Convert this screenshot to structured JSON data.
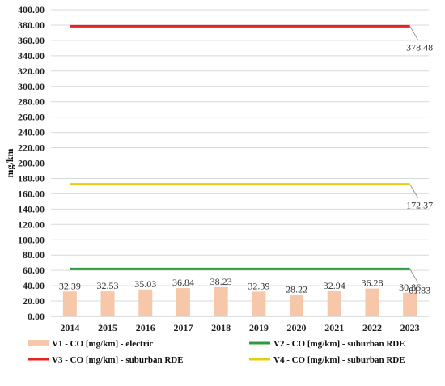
{
  "chart_data": {
    "type": "bar",
    "title": "",
    "xlabel": "",
    "ylabel": "mg/km",
    "ylim": [
      0,
      400
    ],
    "y_tick_step": 20,
    "y_tick_decimals": 2,
    "grid": true,
    "legend_position": "bottom",
    "categories": [
      "2014",
      "2015",
      "2016",
      "2017",
      "2018",
      "2019",
      "2020",
      "2021",
      "2022",
      "2023"
    ],
    "series": [
      {
        "name": "V1 - CO [mg/km] - electric",
        "type": "bar",
        "color": "#f6c7a8",
        "values": [
          32.39,
          32.53,
          35.03,
          36.84,
          38.23,
          32.39,
          28.22,
          32.94,
          36.28,
          30.86
        ],
        "data_labels": [
          "32.39",
          "32.53",
          "35.03",
          "36.84",
          "38.23",
          "32.39",
          "28.22",
          "32.94",
          "36.28",
          "30.86"
        ]
      },
      {
        "name": "V2 -  CO [mg/km]  - suburban RDE",
        "type": "line",
        "color": "#2e9b3c",
        "values": [
          61.83,
          61.83,
          61.83,
          61.83,
          61.83,
          61.83,
          61.83,
          61.83,
          61.83,
          61.83
        ],
        "end_label": "61.83"
      },
      {
        "name": "V3 -  CO [mg/km] - suburban RDE",
        "type": "line",
        "color": "#e8231e",
        "values": [
          378.48,
          378.48,
          378.48,
          378.48,
          378.48,
          378.48,
          378.48,
          378.48,
          378.48,
          378.48
        ],
        "end_label": "378.48"
      },
      {
        "name": "V4 -  CO [mg/km] - suburban RDE",
        "type": "line",
        "color": "#e6cd12",
        "values": [
          172.37,
          172.37,
          172.37,
          172.37,
          172.37,
          172.37,
          172.37,
          172.37,
          172.37,
          172.37
        ],
        "end_label": "172.37"
      }
    ],
    "legend_order": [
      0,
      1,
      2,
      3
    ]
  }
}
